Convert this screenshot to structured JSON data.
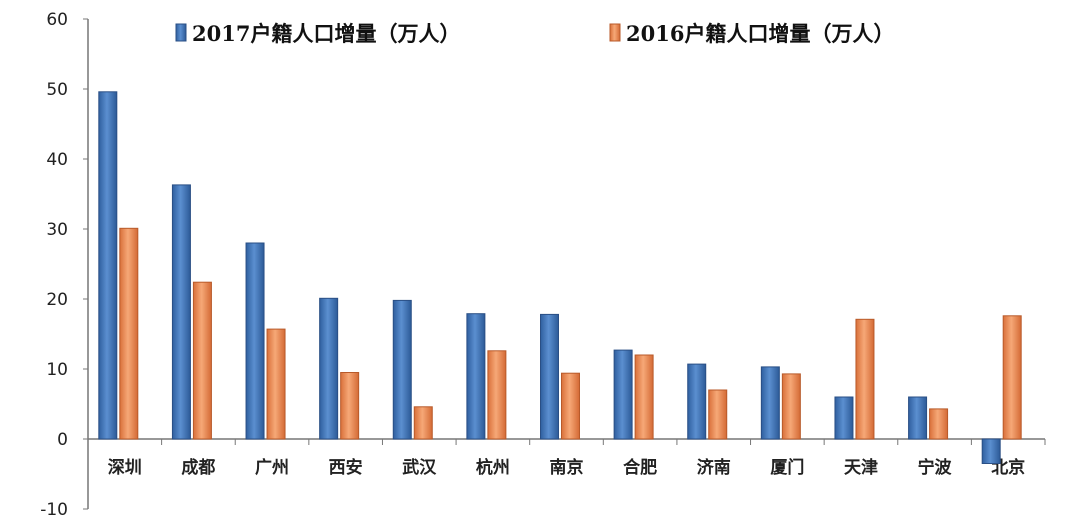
{
  "chart_data": {
    "type": "bar",
    "title": "",
    "xlabel": "",
    "ylabel": "",
    "ylim": [
      -10,
      60
    ],
    "yticks": [
      -10,
      0,
      10,
      20,
      30,
      40,
      50,
      60
    ],
    "grid": false,
    "legend_position": "top",
    "categories": [
      "深圳",
      "成都",
      "广州",
      "西安",
      "武汉",
      "杭州",
      "南京",
      "合肥",
      "济南",
      "厦门",
      "天津",
      "宁波",
      "北京"
    ],
    "series": [
      {
        "name": "2017户籍人口增量（万人）",
        "color": "#3d72b8",
        "values": [
          49.6,
          36.3,
          28.0,
          20.1,
          19.8,
          17.9,
          17.8,
          12.7,
          10.7,
          10.3,
          6.0,
          6.0,
          -3.5
        ]
      },
      {
        "name": "2016户籍人口增量（万人）",
        "color": "#ec8e57",
        "values": [
          30.1,
          22.4,
          15.7,
          9.5,
          4.6,
          12.6,
          9.4,
          12.0,
          7.0,
          9.3,
          17.1,
          4.3,
          17.6
        ]
      }
    ]
  }
}
